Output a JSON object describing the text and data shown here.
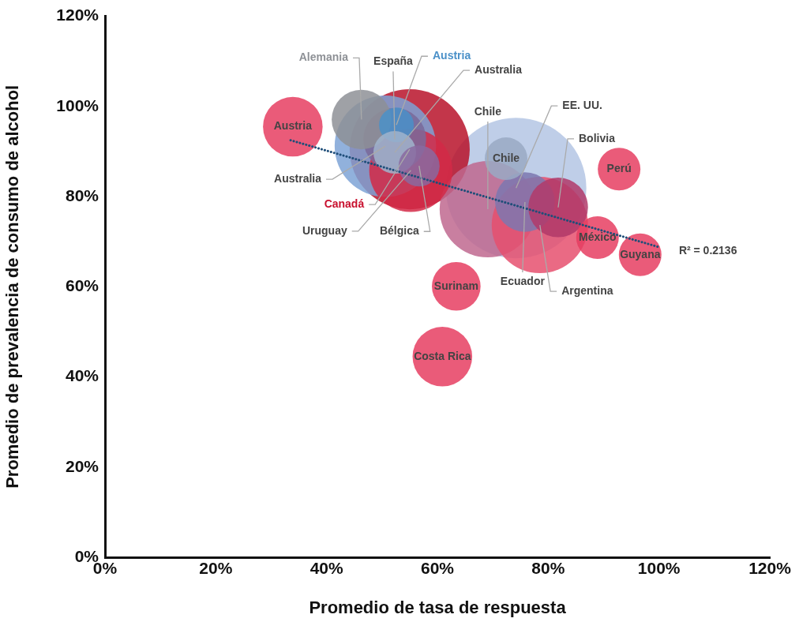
{
  "chart_data": {
    "type": "bubble",
    "xlabel": "Promedio de tasa de respuesta",
    "ylabel": "Promedio de prevalencia de consumo de alcohol",
    "xlim": [
      0,
      120
    ],
    "ylim": [
      0,
      120
    ],
    "xticks": [
      {
        "value": 0,
        "label": "0%"
      },
      {
        "value": 20,
        "label": "20%"
      },
      {
        "value": 40,
        "label": "40%"
      },
      {
        "value": 60,
        "label": "60%"
      },
      {
        "value": 80,
        "label": "80%"
      },
      {
        "value": 100,
        "label": "100%"
      },
      {
        "value": 120,
        "label": "120%"
      }
    ],
    "yticks": [
      {
        "value": 0,
        "label": "0%"
      },
      {
        "value": 20,
        "label": "20%"
      },
      {
        "value": 40,
        "label": "40%"
      },
      {
        "value": 60,
        "label": "60%"
      },
      {
        "value": 80,
        "label": "80%"
      },
      {
        "value": 100,
        "label": "100%"
      },
      {
        "value": 120,
        "label": "120%"
      }
    ],
    "grid": false,
    "legend": false,
    "series": [
      {
        "type": "bubble",
        "x": [
          74.2,
          55.0,
          50.6,
          69.1,
          78.5,
          55.2,
          52.3,
          46.3,
          52.6,
          52.3,
          56.7,
          75.8,
          81.8,
          72.4,
          33.9,
          92.8,
          88.9,
          96.6,
          63.4,
          60.9
        ],
        "values": [
          81.9,
          90.5,
          91.2,
          77.2,
          73.7,
          85.8,
          92.7,
          97.1,
          95.9,
          89.8,
          86.8,
          78.8,
          77.6,
          88.4,
          95.5,
          86.1,
          70.9,
          67.1,
          60.1,
          44.5
        ],
        "sizes": [
          1,
          0.73,
          0.52,
          0.47,
          0.47,
          0.35,
          0.2,
          0.18,
          0.061,
          0.092,
          0.085,
          0.18,
          0.18,
          0.092,
          0.18,
          0.092,
          0.092,
          0.092,
          0.12,
          0.18
        ],
        "colors": [
          "#b4c6e4",
          "#b8132a",
          "#7ea3d6",
          "#c0688f",
          "#e6506f",
          "#d42a48",
          "#7a6a9a",
          "#8e9196",
          "#4a90c8",
          "#a0b4cc",
          "#8a6aa0",
          "#7c78b0",
          "#b23a6a",
          "#9aaac4",
          "#e63e62",
          "#e63e62",
          "#e63e62",
          "#e63e62",
          "#e63e62",
          "#e63e62"
        ]
      },
      {
        "type": "line",
        "x": [
          33.5,
          100
        ],
        "values": [
          92.5,
          68.8
        ],
        "color": "#1f4e79",
        "line_style": "dotted"
      }
    ],
    "annotations": [
      {
        "text": "EE. UU.",
        "x": 74.2,
        "y": 81.9
      },
      {
        "text": "Canadá",
        "x": 55.0,
        "y": 90.5
      },
      {
        "text": "Australia",
        "x": 50.6,
        "y": 91.2
      },
      {
        "text": "Chile",
        "x": 69.1,
        "y": 77.2
      },
      {
        "text": "Argentina",
        "x": 78.5,
        "y": 73.7
      },
      {
        "text": "Uruguay",
        "x": 55.2,
        "y": 85.8
      },
      {
        "text": "España",
        "x": 52.3,
        "y": 92.7
      },
      {
        "text": "Alemania",
        "x": 46.3,
        "y": 97.1
      },
      {
        "text": "Austria",
        "x": 52.6,
        "y": 95.9
      },
      {
        "text": "Australia",
        "x": 52.3,
        "y": 89.8
      },
      {
        "text": "Bélgica",
        "x": 56.7,
        "y": 86.8
      },
      {
        "text": "Ecuador",
        "x": 75.8,
        "y": 78.8
      },
      {
        "text": "Bolivia",
        "x": 81.8,
        "y": 77.6
      },
      {
        "text": "Chile",
        "x": 72.4,
        "y": 88.4
      },
      {
        "text": "Austria",
        "x": 33.9,
        "y": 95.5
      },
      {
        "text": "Perú",
        "x": 92.8,
        "y": 86.1
      },
      {
        "text": "México",
        "x": 88.9,
        "y": 70.9
      },
      {
        "text": "Guyana",
        "x": 96.6,
        "y": 67.1
      },
      {
        "text": "Surinam",
        "x": 63.4,
        "y": 60.1
      },
      {
        "text": "Costa Rica",
        "x": 60.9,
        "y": 44.5
      },
      "R² = 0.2136"
    ]
  }
}
